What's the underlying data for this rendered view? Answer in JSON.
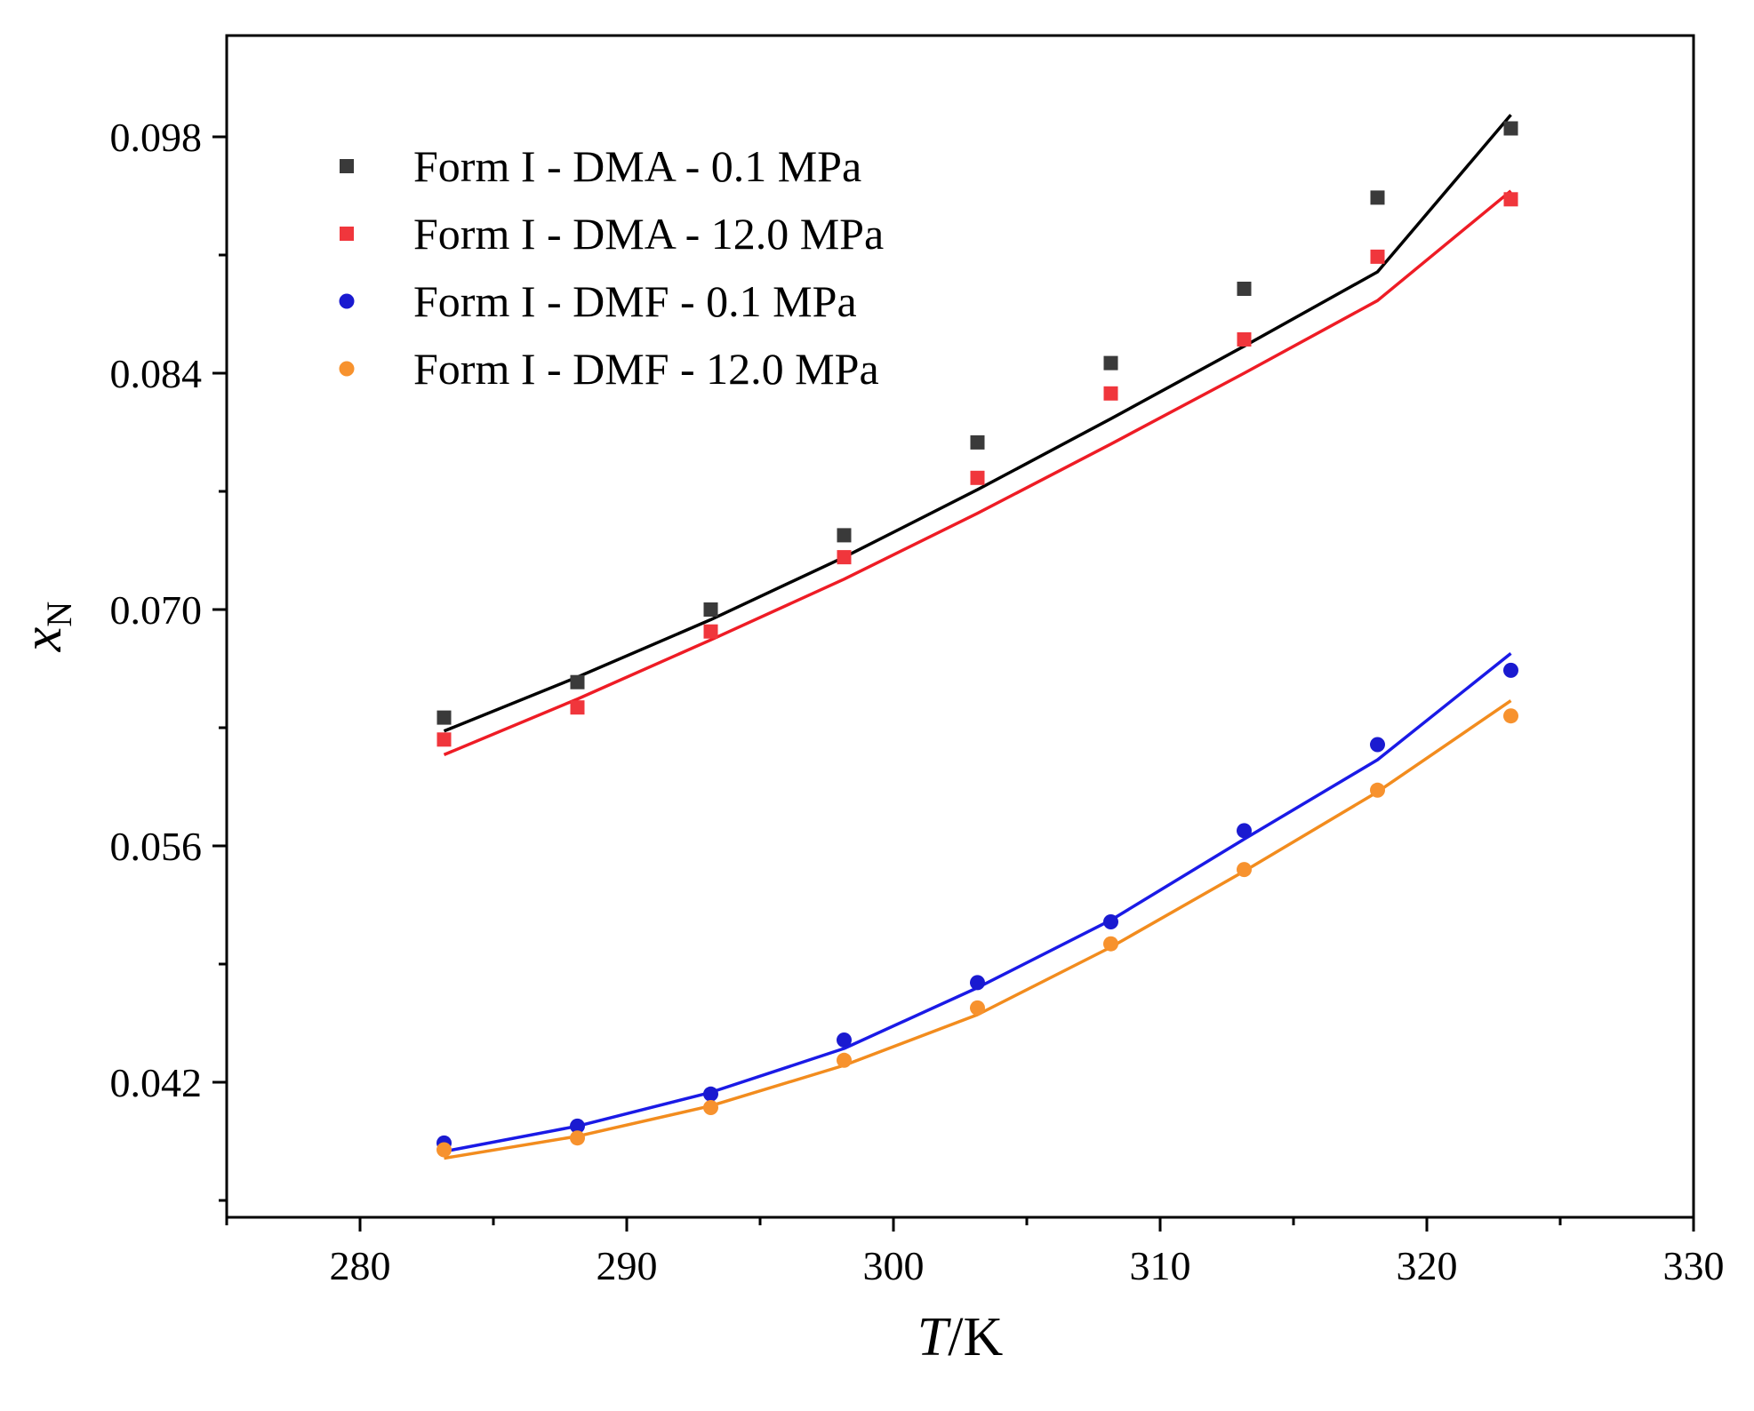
{
  "chart_data": {
    "type": "scatter",
    "title": "",
    "xlabel_italic": "T",
    "xlabel_rest": "/K",
    "ylabel_main": "x",
    "ylabel_sub": "N",
    "xlim": [
      275,
      330
    ],
    "ylim": [
      0.034,
      0.104
    ],
    "x_ticks": [
      280,
      290,
      300,
      310,
      320,
      330
    ],
    "x_tick_labels": [
      "280",
      "290",
      "300",
      "310",
      "320",
      "330"
    ],
    "y_ticks": [
      0.042,
      0.056,
      0.07,
      0.084,
      0.098
    ],
    "y_tick_labels": [
      "0.042",
      "0.056",
      "0.070",
      "0.084",
      "0.098"
    ],
    "legend_position": "top-left",
    "x": [
      283.15,
      288.15,
      293.15,
      298.15,
      303.15,
      308.15,
      313.15,
      318.15,
      323.15
    ],
    "series": [
      {
        "name": "Form I - DMA - 0.1 MPa",
        "marker": "square",
        "color": "#3a3a3a",
        "fit_color": "#000000",
        "values": [
          0.0636,
          0.0657,
          0.07,
          0.0744,
          0.0799,
          0.0846,
          0.089,
          0.0944,
          0.0985
        ],
        "fit": [
          0.0628,
          0.066,
          0.0694,
          0.0731,
          0.0771,
          0.0813,
          0.0856,
          0.09,
          0.0993
        ]
      },
      {
        "name": "Form I - DMA - 12.0 MPa",
        "marker": "square",
        "color": "#f0363c",
        "fit_color": "#ee1c25",
        "values": [
          0.0623,
          0.0642,
          0.0687,
          0.0731,
          0.0778,
          0.0828,
          0.086,
          0.0909,
          0.0943
        ],
        "fit": [
          0.0614,
          0.0647,
          0.0682,
          0.0718,
          0.0757,
          0.0798,
          0.084,
          0.0883,
          0.0948
        ]
      },
      {
        "name": "Form I - DMF - 0.1 MPa",
        "marker": "circle",
        "color": "#1a1ad0",
        "fit_color": "#1a1ae6",
        "values": [
          0.0384,
          0.0394,
          0.0413,
          0.0445,
          0.0479,
          0.0515,
          0.0569,
          0.062,
          0.0664
        ],
        "fit": [
          0.0379,
          0.0394,
          0.0414,
          0.044,
          0.0476,
          0.0516,
          0.0564,
          0.0611,
          0.0674
        ]
      },
      {
        "name": "Form I - DMF - 12.0 MPa",
        "marker": "circle",
        "color": "#f7922e",
        "fit_color": "#f28c1e",
        "values": [
          0.038,
          0.0387,
          0.0405,
          0.0433,
          0.0464,
          0.0502,
          0.0546,
          0.0593,
          0.0637
        ],
        "fit": [
          0.0375,
          0.0388,
          0.0406,
          0.043,
          0.046,
          0.05,
          0.0545,
          0.0592,
          0.0646
        ]
      }
    ]
  }
}
